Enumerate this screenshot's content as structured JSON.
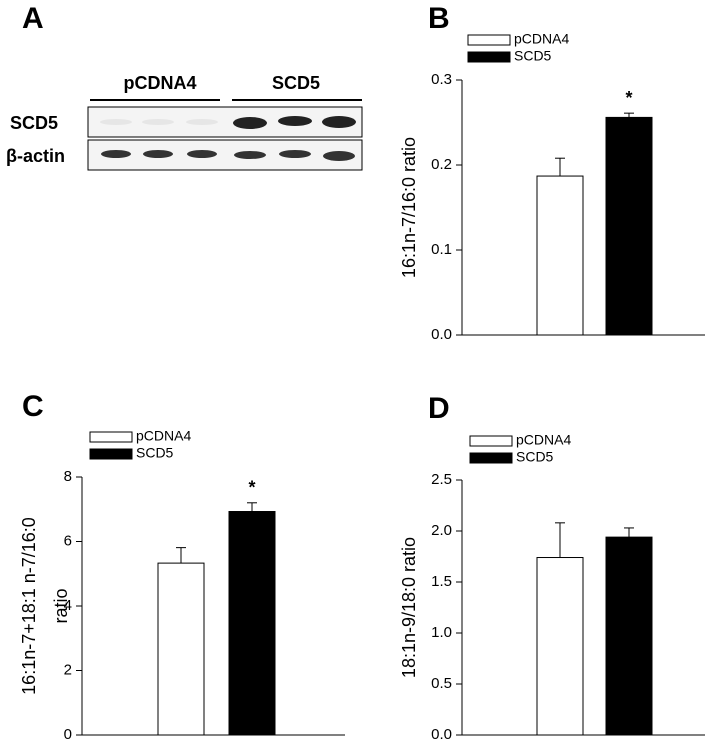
{
  "blot": {
    "panel_label": "A",
    "groups": [
      "pCDNA4",
      "SCD5"
    ],
    "rows": [
      "SCD5",
      "β-actin"
    ]
  },
  "chart_data": [
    {
      "type": "bar",
      "panel_label": "B",
      "ylabel": [
        "16:1n-7/16:0 ratio"
      ],
      "series": [
        {
          "name": "pCDNA4",
          "color": "#ffffff",
          "values": [
            0.187
          ],
          "errors": [
            0.021
          ]
        },
        {
          "name": "SCD5",
          "color": "#000000",
          "values": [
            0.256
          ],
          "errors": [
            0.005
          ]
        }
      ],
      "annotation": "*",
      "ylim": [
        0,
        0.3
      ],
      "yticks": [
        {
          "value": 0,
          "label": "0.0"
        },
        0.1,
        0.2,
        0.3
      ]
    },
    {
      "type": "bar",
      "panel_label": "C",
      "ylabel": [
        "16:1n-7+18:1 n-7/16:0",
        "ratio"
      ],
      "series": [
        {
          "name": "pCDNA4",
          "color": "#ffffff",
          "values": [
            5.33
          ],
          "errors": [
            0.48
          ]
        },
        {
          "name": "SCD5",
          "color": "#000000",
          "values": [
            6.93
          ],
          "errors": [
            0.27
          ]
        }
      ],
      "annotation": "*",
      "ylim": [
        0,
        8
      ],
      "yticks": [
        0,
        2,
        4,
        6,
        8
      ]
    },
    {
      "type": "bar",
      "panel_label": "D",
      "ylabel": [
        "18:1n-9/18:0 ratio"
      ],
      "series": [
        {
          "name": "pCDNA4",
          "color": "#ffffff",
          "values": [
            1.74
          ],
          "errors": [
            0.34
          ]
        },
        {
          "name": "SCD5",
          "color": "#000000",
          "values": [
            1.94
          ],
          "errors": [
            0.09
          ]
        }
      ],
      "ylim": [
        0,
        2.5
      ],
      "yticks": [
        {
          "value": 0,
          "label": "0.0"
        },
        0.5,
        {
          "value": 1,
          "label": "1.0"
        },
        1.5,
        {
          "value": 2,
          "label": "2.0"
        },
        2.5
      ]
    }
  ]
}
